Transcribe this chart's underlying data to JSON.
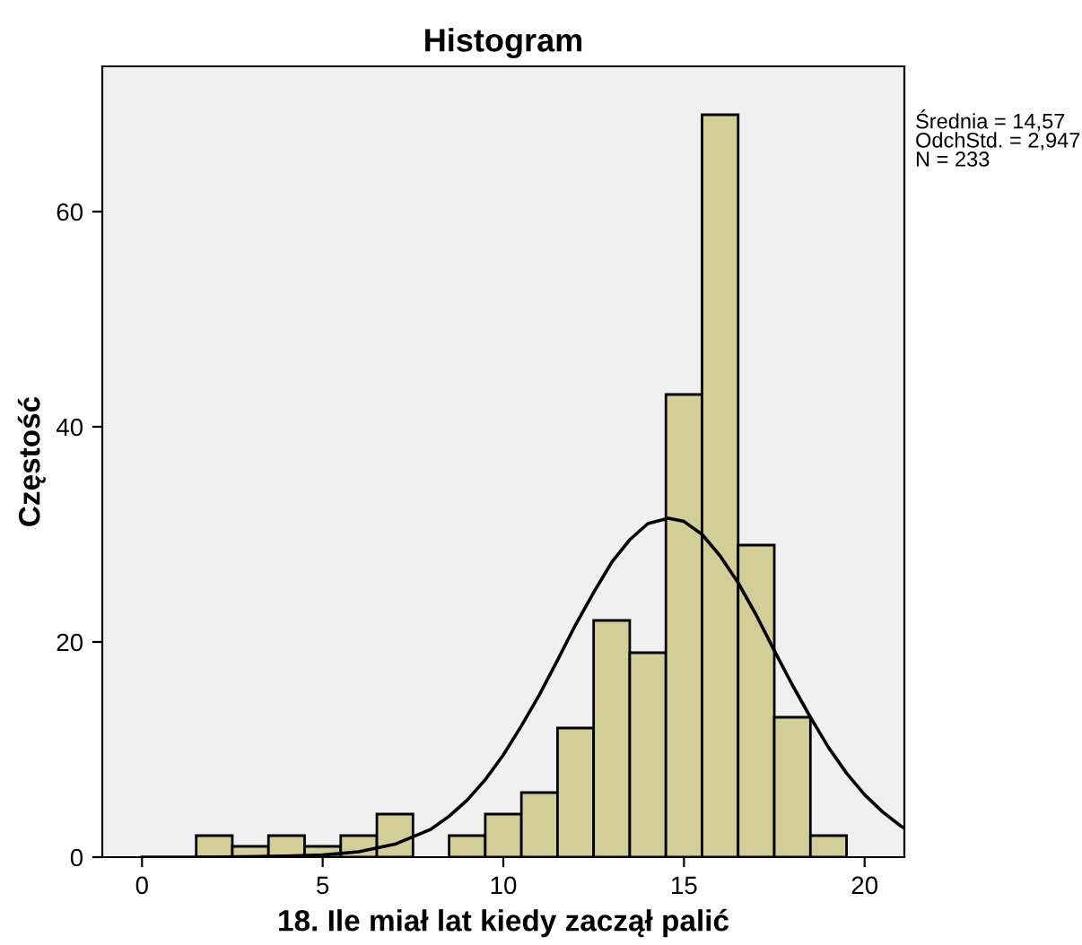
{
  "chart_data": {
    "type": "histogram",
    "title": "Histogram",
    "xlabel": "18. Ile miał lat kiedy zaczął palić",
    "ylabel": "Częstość",
    "bins": [
      1.5,
      2.5,
      3.5,
      4.5,
      5.5,
      6.5,
      7.5,
      8.5,
      9.5,
      10.5,
      11.5,
      12.5,
      13.5,
      14.5,
      15.5,
      16.5,
      17.5,
      18.5,
      19.5
    ],
    "values": [
      2,
      1,
      2,
      1,
      2,
      4,
      0,
      2,
      4,
      6,
      12,
      22,
      19,
      43,
      69,
      29,
      13,
      2
    ],
    "color": "#d3ce98",
    "series": [
      {
        "type": "line",
        "color": "#000000",
        "x": [
          0,
          2,
          4,
          5,
          6,
          7,
          8,
          8.5,
          9,
          9.5,
          10,
          10.5,
          11,
          11.5,
          12,
          12.5,
          13,
          13.5,
          14,
          14.57,
          15,
          15.5,
          16,
          16.5,
          17,
          17.5,
          18,
          18.5,
          19,
          19.5,
          20,
          20.5,
          21,
          21.1
        ],
        "values": [
          0,
          0,
          0.1,
          0.2,
          0.5,
          1.2,
          2.6,
          3.8,
          5.3,
          7.2,
          9.5,
          12.2,
          15.1,
          18.3,
          21.6,
          24.6,
          27.4,
          29.5,
          31,
          31.5,
          31.2,
          30,
          28,
          25.5,
          22.5,
          19.2,
          16,
          13,
          10.2,
          7.8,
          5.8,
          4.2,
          2.9,
          2.7
        ]
      }
    ],
    "xlim": [
      -1.1,
      21.1
    ],
    "ylim": [
      0,
      73.5
    ],
    "xticks": [
      0,
      5,
      10,
      15,
      20
    ],
    "yticks": [
      0,
      20,
      40,
      60
    ],
    "grid": false,
    "legend": false,
    "annotations": [
      "Średnia = 14,57\nOdchStd. = 2,947\nN = 233"
    ]
  }
}
